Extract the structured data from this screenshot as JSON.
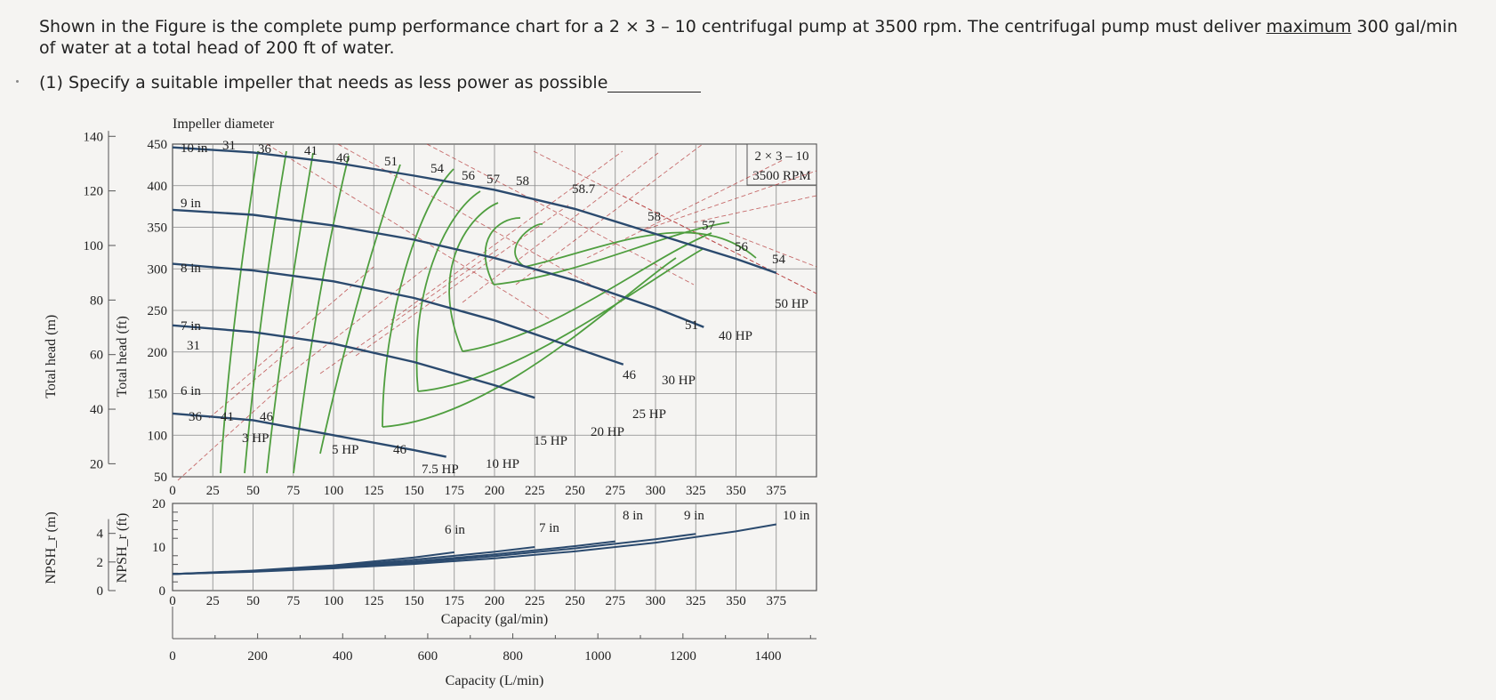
{
  "question": {
    "part1": "Shown in the Figure is the complete pump performance chart for a 2 × 3 – 10 centrifugal pump at 3500 rpm. The centrifugal pump must deliver ",
    "underlined": "maximum",
    "part2": " 300 gal/min of water at a total head of 200 ft of water.",
    "sub_item": "(1)  Specify a suitable impeller that needs as less power as possible"
  },
  "chart_data": [
    {
      "type": "line",
      "title": "Impeller diameter",
      "corner_label": [
        "2 × 3 – 10",
        "3500 RPM"
      ],
      "xlabel": "Capacity (gal/min)",
      "ylabel_left": "Total head (m)",
      "ylabel_right": "Total head (ft)",
      "xlim": [
        0,
        400
      ],
      "ylim_ft": [
        50,
        450
      ],
      "x_ticks": [
        "0",
        "25",
        "50",
        "75",
        "100",
        "125",
        "150",
        "175",
        "200",
        "225",
        "250",
        "275",
        "300",
        "325",
        "350",
        "375"
      ],
      "y_ticks_ft": [
        "50",
        "100",
        "150",
        "200",
        "250",
        "300",
        "350",
        "400",
        "450"
      ],
      "y_ticks_m": [
        "20",
        "40",
        "60",
        "80",
        "100",
        "120",
        "140"
      ],
      "impeller_series": [
        {
          "name": "10 in",
          "x": [
            0,
            50,
            100,
            150,
            200,
            250,
            300,
            350,
            375
          ],
          "y": [
            446,
            440,
            428,
            412,
            395,
            372,
            342,
            312,
            295
          ]
        },
        {
          "name": "9 in",
          "x": [
            0,
            50,
            100,
            150,
            200,
            250,
            300,
            330
          ],
          "y": [
            371,
            365,
            352,
            335,
            313,
            286,
            253,
            230
          ]
        },
        {
          "name": "8 in",
          "x": [
            0,
            50,
            100,
            150,
            200,
            250,
            280
          ],
          "y": [
            306,
            298,
            285,
            265,
            238,
            205,
            185
          ]
        },
        {
          "name": "7 in",
          "x": [
            0,
            50,
            100,
            150,
            200,
            225
          ],
          "y": [
            232,
            224,
            210,
            188,
            160,
            145
          ]
        },
        {
          "name": "6 in",
          "x": [
            0,
            50,
            100,
            150,
            170
          ],
          "y": [
            126,
            118,
            100,
            82,
            74
          ]
        }
      ],
      "efficiency_labels": [
        "31",
        "36",
        "41",
        "46",
        "51",
        "54",
        "56",
        "57",
        "58",
        "58.7",
        "58",
        "57",
        "56",
        "54",
        "51",
        "46",
        "31",
        "36",
        "41",
        "46",
        "46"
      ],
      "power_labels": [
        "3 HP",
        "5 HP",
        "7.5 HP",
        "10 HP",
        "15 HP",
        "20 HP",
        "25 HP",
        "30 HP",
        "40 HP",
        "50 HP"
      ]
    },
    {
      "type": "line",
      "ylabel_left": "NPSH_r (m)",
      "ylabel_right": "NPSH_r (ft)",
      "xlabel": "Capacity (gal/min)",
      "xlim": [
        0,
        400
      ],
      "ylim_ft": [
        0,
        20
      ],
      "y_ticks_ft": [
        "0",
        "10",
        "20"
      ],
      "y_ticks_m": [
        "0",
        "2",
        "4"
      ],
      "series": [
        {
          "name": "6 in",
          "x": [
            0,
            50,
            100,
            150,
            175
          ],
          "y": [
            3.8,
            4.6,
            5.8,
            7.6,
            8.8
          ]
        },
        {
          "name": "7 in",
          "x": [
            0,
            50,
            100,
            150,
            200,
            225
          ],
          "y": [
            3.8,
            4.5,
            5.6,
            7.1,
            8.9,
            10.0
          ]
        },
        {
          "name": "8 in",
          "x": [
            0,
            50,
            100,
            150,
            200,
            250,
            275
          ],
          "y": [
            3.8,
            4.4,
            5.4,
            6.7,
            8.3,
            10.2,
            11.3
          ]
        },
        {
          "name": "9 in",
          "x": [
            0,
            50,
            100,
            150,
            200,
            250,
            300,
            325
          ],
          "y": [
            3.8,
            4.4,
            5.3,
            6.4,
            7.9,
            9.7,
            11.8,
            13.0
          ]
        },
        {
          "name": "10 in",
          "x": [
            0,
            50,
            100,
            150,
            200,
            250,
            300,
            350,
            375
          ],
          "y": [
            3.8,
            4.3,
            5.1,
            6.1,
            7.4,
            9.0,
            11.0,
            13.6,
            15.2
          ]
        }
      ],
      "secondary_axis": {
        "label": "Capacity (L/min)",
        "ticks": [
          "0",
          "200",
          "400",
          "600",
          "800",
          "1000",
          "1200",
          "1400"
        ]
      }
    }
  ],
  "colors": {
    "impeller": "#2b4a6e",
    "efficiency": "#4f9e3f",
    "power": "#b33232",
    "grid": "#777"
  }
}
